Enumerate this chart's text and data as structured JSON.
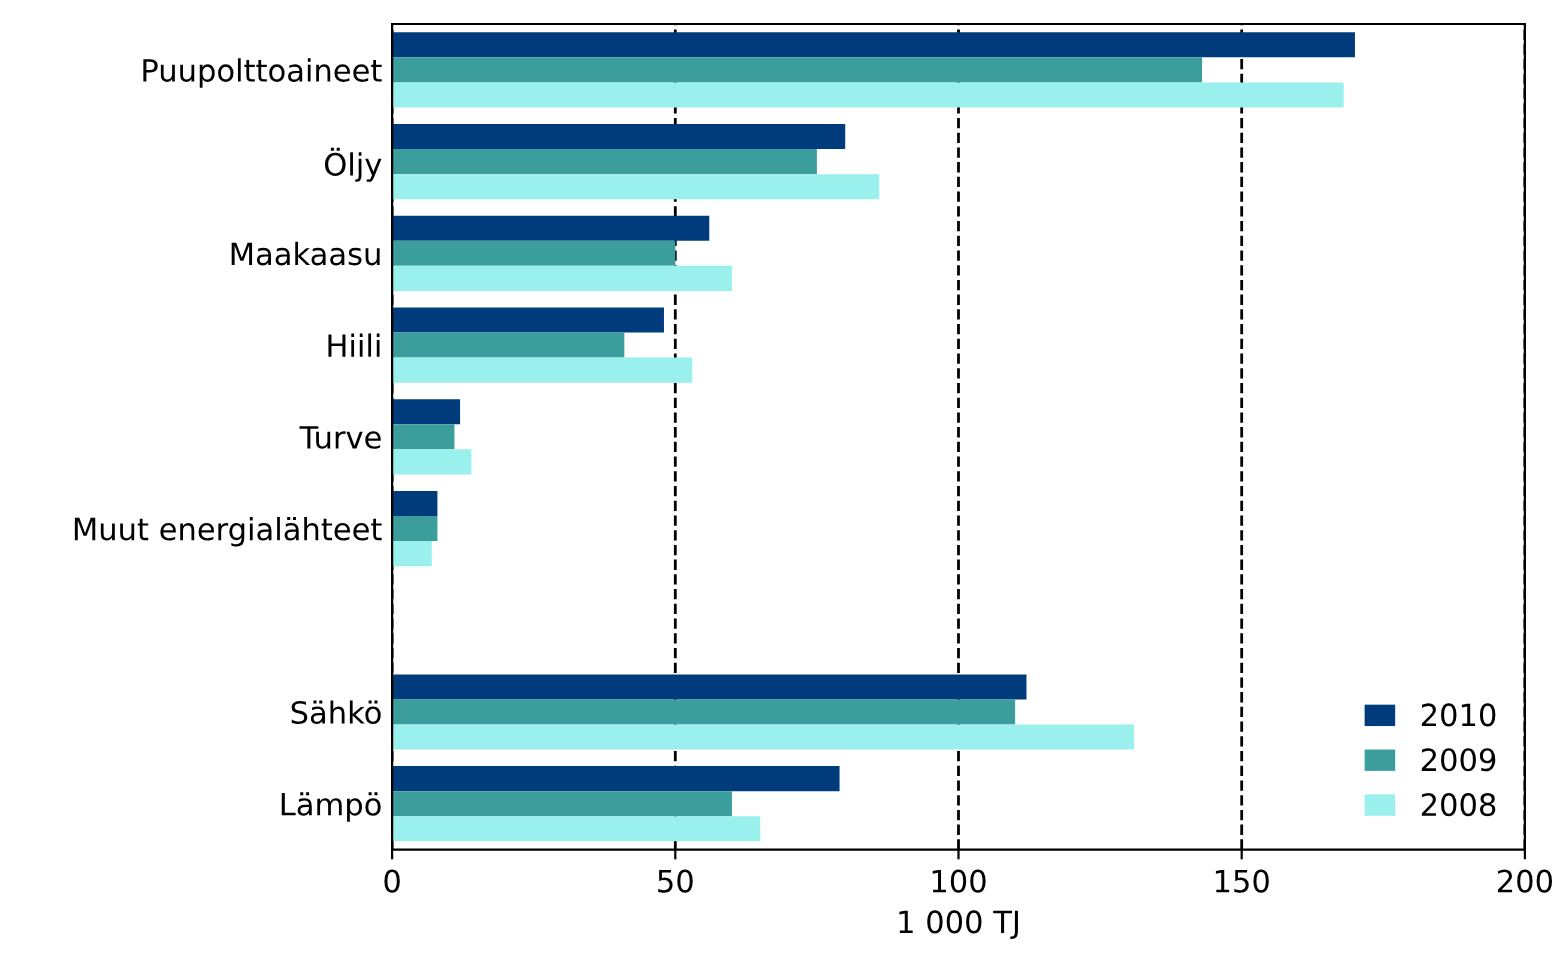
{
  "chart_data": {
    "type": "bar",
    "orientation": "horizontal",
    "xlabel": "1 000 TJ",
    "categories": [
      "Puupolttoaineet",
      "Öljy",
      "Maakaasu",
      "Hiili",
      "Turve",
      "Muut energialähteet",
      null,
      "Sähkö",
      "Lämpö"
    ],
    "series": [
      {
        "name": "2010",
        "color": "#003c7c",
        "values": [
          170,
          80,
          56,
          48,
          12,
          8,
          null,
          112,
          79
        ]
      },
      {
        "name": "2009",
        "color": "#3b9e9c",
        "values": [
          143,
          75,
          50,
          41,
          11,
          8,
          null,
          110,
          60
        ]
      },
      {
        "name": "2008",
        "color": "#99f0ec",
        "values": [
          168,
          86,
          60,
          53,
          14,
          7,
          null,
          131,
          65
        ]
      }
    ],
    "xlim": [
      0,
      200
    ],
    "xticks": [
      0,
      50,
      100,
      150,
      200
    ],
    "grid": "x",
    "line_style": "dashed",
    "legend": "bottom right"
  }
}
